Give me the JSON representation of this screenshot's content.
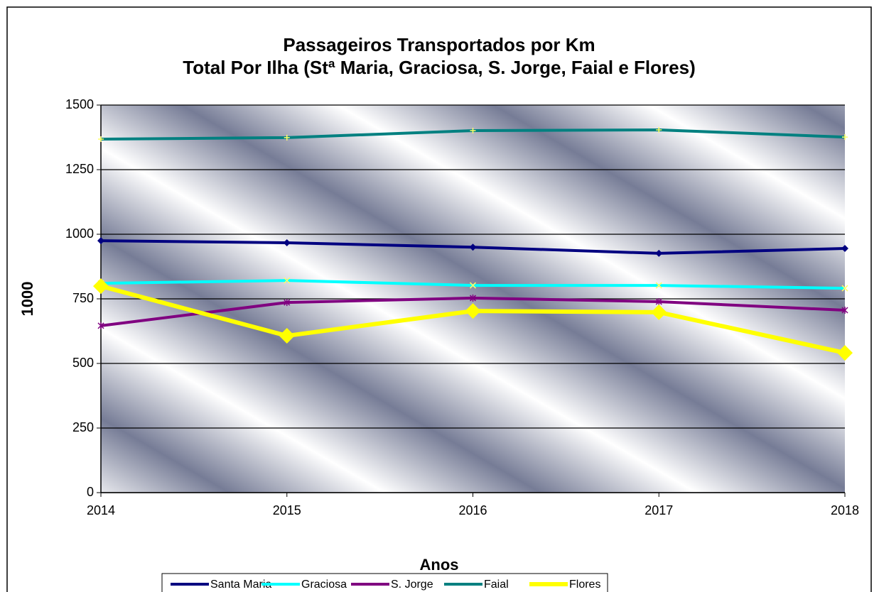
{
  "chart_data": {
    "type": "line",
    "title": "Passageiros Transportados por Km",
    "subtitle": "Total Por Ilha (Stª Maria, Graciosa, S. Jorge, Faial e Flores)",
    "x_label": "Anos",
    "y_label": "1000",
    "x": [
      2014,
      2015,
      2016,
      2017,
      2018
    ],
    "xlim": [
      2014,
      2018
    ],
    "xticks": [
      2014,
      2015,
      2016,
      2017,
      2018
    ],
    "ylim": [
      0,
      1500
    ],
    "yticks": [
      0,
      250,
      500,
      750,
      1000,
      1250,
      1500
    ],
    "grid": true,
    "legend": "bottom",
    "series": [
      {
        "name": "Santa Maria",
        "color": "#000080",
        "values": [
          975,
          967,
          950,
          926,
          945
        ]
      },
      {
        "name": "Graciosa",
        "color": "#00ffff",
        "values": [
          810,
          821,
          802,
          802,
          791
        ]
      },
      {
        "name": "S. Jorge",
        "color": "#800080",
        "values": [
          646,
          736,
          753,
          739,
          706
        ]
      },
      {
        "name": "Faial",
        "color": "#008080",
        "values": [
          1368,
          1374,
          1401,
          1404,
          1376
        ]
      },
      {
        "name": "Flores",
        "color": "#ffff00",
        "values": [
          799,
          607,
          703,
          698,
          541
        ]
      }
    ]
  }
}
